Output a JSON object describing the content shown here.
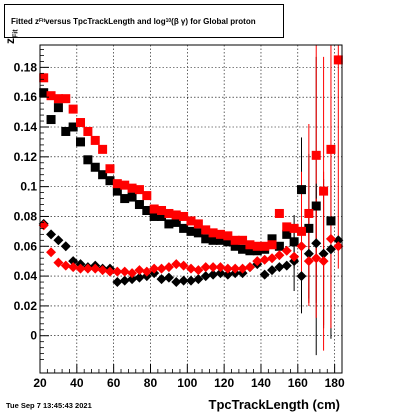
{
  "title": {
    "pre": "Fitted  z",
    "sub1": "Fit",
    "mid": "  versus TpcTrackLength and log",
    "sub2": "10",
    "post": "(β   γ) for Global proton"
  },
  "timestamp": "Tue Sep  7 13:45:43 2021",
  "xaxis_label": "TpcTrackLength (cm)",
  "yaxis_label": {
    "main": "z",
    "sub": "Fit"
  },
  "colors": {
    "black_series": "#000000",
    "red_series": "#ff0000",
    "grid": "#000000"
  },
  "chart_data": {
    "type": "scatter",
    "xlim": [
      20,
      184
    ],
    "ylim": [
      -0.025,
      0.195
    ],
    "xticks": [
      20,
      40,
      60,
      80,
      100,
      120,
      140,
      160,
      180
    ],
    "yticks": [
      0,
      0.02,
      0.04,
      0.06,
      0.08,
      0.1,
      0.12,
      0.14,
      0.16,
      0.18
    ],
    "ytick_labels": [
      "0",
      "0.02",
      "0.04",
      "0.06",
      "0.08",
      "0.1",
      "0.12",
      "0.14",
      "0.16",
      "0.18"
    ],
    "grid": true,
    "series": [
      {
        "color": "#000000",
        "marker": "square",
        "points": [
          [
            22,
            0.163
          ],
          [
            26,
            0.145
          ],
          [
            30,
            0.153
          ],
          [
            34,
            0.137
          ],
          [
            38,
            0.14
          ],
          [
            42,
            0.13
          ],
          [
            46,
            0.118
          ],
          [
            50,
            0.113
          ],
          [
            54,
            0.108
          ],
          [
            58,
            0.104
          ],
          [
            62,
            0.097
          ],
          [
            66,
            0.092
          ],
          [
            70,
            0.093
          ],
          [
            74,
            0.088
          ],
          [
            78,
            0.084
          ],
          [
            82,
            0.08
          ],
          [
            86,
            0.08
          ],
          [
            90,
            0.075
          ],
          [
            94,
            0.076
          ],
          [
            98,
            0.072
          ],
          [
            102,
            0.07
          ],
          [
            106,
            0.069
          ],
          [
            110,
            0.065
          ],
          [
            114,
            0.064
          ],
          [
            118,
            0.064
          ],
          [
            122,
            0.063
          ],
          [
            126,
            0.06
          ],
          [
            130,
            0.058
          ],
          [
            134,
            0.057
          ],
          [
            138,
            0.057
          ],
          [
            142,
            0.058
          ],
          [
            146,
            0.065
          ],
          [
            150,
            0.06
          ],
          [
            154,
            0.068
          ],
          [
            158,
            0.063
          ],
          [
            162,
            0.098
          ],
          [
            166,
            0.072
          ],
          [
            170,
            0.087
          ],
          [
            178,
            0.077
          ]
        ],
        "errors": [
          [
            158,
            0.018
          ],
          [
            162,
            0.035
          ],
          [
            166,
            0.05
          ],
          [
            170,
            0.1
          ]
        ]
      },
      {
        "color": "#ff0000",
        "marker": "square",
        "points": [
          [
            22,
            0.173
          ],
          [
            26,
            0.161
          ],
          [
            30,
            0.159
          ],
          [
            34,
            0.159
          ],
          [
            38,
            0.152
          ],
          [
            42,
            0.143
          ],
          [
            46,
            0.137
          ],
          [
            50,
            0.131
          ],
          [
            54,
            0.125
          ],
          [
            58,
            0.112
          ],
          [
            62,
            0.102
          ],
          [
            66,
            0.101
          ],
          [
            70,
            0.099
          ],
          [
            74,
            0.098
          ],
          [
            78,
            0.094
          ],
          [
            82,
            0.085
          ],
          [
            86,
            0.084
          ],
          [
            90,
            0.082
          ],
          [
            94,
            0.081
          ],
          [
            98,
            0.08
          ],
          [
            102,
            0.077
          ],
          [
            106,
            0.075
          ],
          [
            110,
            0.071
          ],
          [
            114,
            0.069
          ],
          [
            118,
            0.068
          ],
          [
            122,
            0.067
          ],
          [
            126,
            0.064
          ],
          [
            130,
            0.064
          ],
          [
            134,
            0.061
          ],
          [
            138,
            0.06
          ],
          [
            142,
            0.06
          ],
          [
            146,
            0.061
          ],
          [
            150,
            0.082
          ],
          [
            154,
            0.073
          ],
          [
            158,
            0.072
          ],
          [
            162,
            0.07
          ],
          [
            166,
            0.082
          ],
          [
            170,
            0.121
          ],
          [
            174,
            0.097
          ],
          [
            178,
            0.125
          ],
          [
            182,
            0.185
          ]
        ],
        "errors": [
          [
            162,
            0.04
          ],
          [
            166,
            0.06
          ],
          [
            170,
            0.08
          ],
          [
            174,
            0.09
          ],
          [
            178,
            0.12
          ],
          [
            182,
            0.14
          ]
        ]
      },
      {
        "color": "#000000",
        "marker": "diamond",
        "points": [
          [
            22,
            0.075
          ],
          [
            26,
            0.068
          ],
          [
            30,
            0.064
          ],
          [
            34,
            0.06
          ],
          [
            38,
            0.05
          ],
          [
            42,
            0.048
          ],
          [
            46,
            0.046
          ],
          [
            50,
            0.047
          ],
          [
            54,
            0.045
          ],
          [
            58,
            0.045
          ],
          [
            62,
            0.036
          ],
          [
            66,
            0.037
          ],
          [
            70,
            0.038
          ],
          [
            74,
            0.039
          ],
          [
            78,
            0.04
          ],
          [
            82,
            0.042
          ],
          [
            86,
            0.038
          ],
          [
            90,
            0.039
          ],
          [
            94,
            0.036
          ],
          [
            98,
            0.037
          ],
          [
            102,
            0.037
          ],
          [
            106,
            0.038
          ],
          [
            110,
            0.04
          ],
          [
            114,
            0.041
          ],
          [
            118,
            0.042
          ],
          [
            122,
            0.041
          ],
          [
            126,
            0.042
          ],
          [
            130,
            0.042
          ],
          [
            134,
            0.046
          ],
          [
            138,
            0.048
          ],
          [
            142,
            0.041
          ],
          [
            146,
            0.044
          ],
          [
            150,
            0.046
          ],
          [
            154,
            0.047
          ],
          [
            158,
            0.05
          ],
          [
            162,
            0.04
          ],
          [
            166,
            0.055
          ],
          [
            170,
            0.062
          ],
          [
            174,
            0.055
          ],
          [
            178,
            0.058
          ],
          [
            182,
            0.064
          ]
        ],
        "errors": [
          [
            158,
            0.02
          ],
          [
            162,
            0.025
          ],
          [
            166,
            0.03
          ],
          [
            170,
            0.04
          ],
          [
            174,
            0.05
          ],
          [
            178,
            0.06
          ]
        ]
      },
      {
        "color": "#ff0000",
        "marker": "diamond",
        "points": [
          [
            22,
            0.074
          ],
          [
            26,
            0.056
          ],
          [
            30,
            0.049
          ],
          [
            34,
            0.047
          ],
          [
            38,
            0.046
          ],
          [
            42,
            0.045
          ],
          [
            46,
            0.045
          ],
          [
            50,
            0.045
          ],
          [
            54,
            0.044
          ],
          [
            58,
            0.043
          ],
          [
            62,
            0.043
          ],
          [
            66,
            0.043
          ],
          [
            70,
            0.042
          ],
          [
            74,
            0.044
          ],
          [
            78,
            0.043
          ],
          [
            82,
            0.045
          ],
          [
            86,
            0.045
          ],
          [
            90,
            0.046
          ],
          [
            94,
            0.048
          ],
          [
            98,
            0.047
          ],
          [
            102,
            0.045
          ],
          [
            106,
            0.044
          ],
          [
            110,
            0.046
          ],
          [
            114,
            0.046
          ],
          [
            118,
            0.046
          ],
          [
            122,
            0.045
          ],
          [
            126,
            0.045
          ],
          [
            130,
            0.045
          ],
          [
            134,
            0.046
          ],
          [
            138,
            0.05
          ],
          [
            142,
            0.051
          ],
          [
            146,
            0.052
          ],
          [
            150,
            0.054
          ],
          [
            154,
            0.057
          ],
          [
            158,
            0.053
          ],
          [
            162,
            0.06
          ],
          [
            166,
            0.05
          ],
          [
            170,
            0.052
          ],
          [
            174,
            0.05
          ],
          [
            178,
            0.065
          ],
          [
            182,
            0.06
          ]
        ],
        "errors": [
          [
            162,
            0.02
          ],
          [
            166,
            0.03
          ],
          [
            170,
            0.04
          ],
          [
            174,
            0.06
          ],
          [
            178,
            0.06
          ]
        ]
      }
    ]
  }
}
